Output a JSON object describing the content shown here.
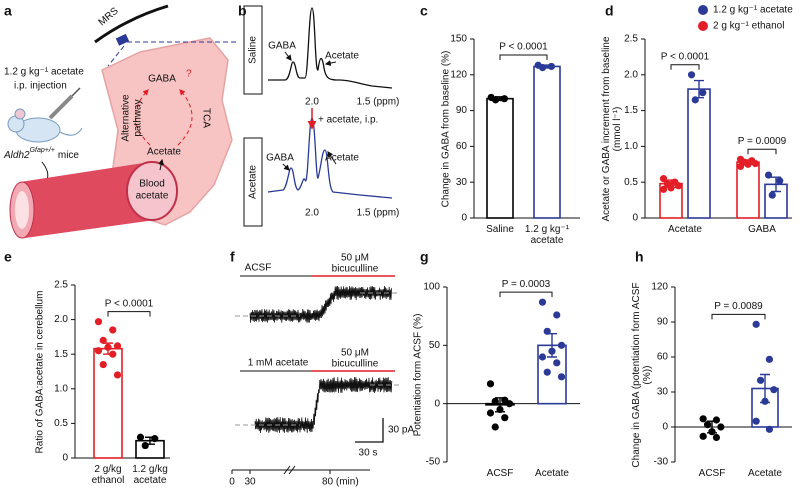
{
  "chart_data": [
    {
      "type": "bar",
      "panel": "c",
      "ylabel": "Change in GABA from baseline (%)",
      "categories": [
        "Saline",
        "1.2 g kg⁻¹ acetate"
      ],
      "values": [
        100,
        127
      ],
      "errors": [
        1.5,
        1.2
      ],
      "colors": [
        "#000000",
        "#2b3a97"
      ],
      "points": [
        [
          101,
          100,
          99
        ],
        [
          128,
          127,
          126
        ]
      ],
      "ylim": [
        0,
        150
      ],
      "yticks": [
        0,
        30,
        60,
        90,
        120,
        150
      ],
      "annotations": [
        {
          "text": "P < 0.0001",
          "between": [
            0,
            1
          ]
        }
      ]
    },
    {
      "type": "bar",
      "panel": "d",
      "ylabel": "Acetate or GABA increment from baseline (mmol l⁻¹)",
      "categories": [
        "Acetate",
        "GABA"
      ],
      "legend": "top-right",
      "series": [
        {
          "name": "1.2 g kg⁻¹ acetate",
          "color": "#2b3a97",
          "values": [
            1.8,
            0.47
          ],
          "errors": [
            0.12,
            0.1
          ],
          "points": [
            [
              2.0,
              1.75,
              1.65
            ],
            [
              0.6,
              0.52,
              0.32
            ]
          ]
        },
        {
          "name": "2 g kg⁻¹ ethanol",
          "color": "#e41e26",
          "values": [
            0.48,
            0.78
          ],
          "errors": [
            0.05,
            0.03
          ],
          "points": [
            [
              0.55,
              0.5,
              0.48,
              0.45,
              0.42,
              0.4,
              0.5
            ],
            [
              0.82,
              0.8,
              0.78,
              0.76,
              0.75,
              0.72
            ]
          ]
        }
      ],
      "ylim": [
        0,
        2.5
      ],
      "yticks": [
        0,
        0.5,
        {
          "value": 1,
          "label": "1.0"
        },
        1.5,
        {
          "value": 2,
          "label": "2.0"
        },
        2.5
      ],
      "annotations": [
        {
          "text": "P < 0.0001",
          "category": 0
        },
        {
          "text": "P = 0.0009",
          "category": 1
        }
      ]
    },
    {
      "type": "bar",
      "panel": "e",
      "ylabel": "Ratio of GABA:acetate in cerebellum",
      "categories": [
        "2 g/kg ethanol",
        "1.2 g/kg acetate"
      ],
      "values": [
        1.58,
        0.25
      ],
      "errors": [
        0.08,
        0.05
      ],
      "colors": [
        "#e41e26",
        "#000000"
      ],
      "points": [
        [
          1.97,
          1.85,
          1.7,
          1.62,
          1.6,
          1.55,
          1.5,
          1.35,
          1.2
        ],
        [
          0.3,
          0.28,
          0.18
        ]
      ],
      "ylim": [
        0,
        2.5
      ],
      "yticks": [
        0,
        0.5,
        {
          "value": 1,
          "label": "1.0"
        },
        1.5,
        {
          "value": 2,
          "label": "2.0"
        },
        2.5
      ],
      "annotations": [
        {
          "text": "P < 0.0001",
          "between": [
            0,
            1
          ]
        }
      ]
    },
    {
      "type": "bar",
      "panel": "g",
      "ylabel": "Potentiation form ACSF (%)",
      "categories": [
        "ACSF",
        "Acetate"
      ],
      "values": [
        -1,
        50
      ],
      "errors": [
        6,
        10
      ],
      "colors": [
        "#000000",
        "#2b3a97"
      ],
      "points": [
        [
          17,
          3,
          2,
          0,
          -5,
          -8,
          -12,
          -20
        ],
        [
          87,
          76,
          62,
          50,
          45,
          40,
          35,
          27,
          23
        ]
      ],
      "ylim": [
        -50,
        100
      ],
      "yticks": [
        -50,
        0,
        50,
        100
      ],
      "annotations": [
        {
          "text": "P = 0.0003",
          "between": [
            0,
            1
          ]
        }
      ]
    },
    {
      "type": "bar",
      "panel": "h",
      "ylabel": "Change in GABA (potentiation form ACSF (%))",
      "categories": [
        "ACSF",
        "Acetate"
      ],
      "values": [
        0,
        33
      ],
      "errors": [
        5,
        12
      ],
      "colors": [
        "#000000",
        "#2b3a97"
      ],
      "points": [
        [
          7,
          6,
          2,
          0,
          -4,
          -8,
          -9
        ],
        [
          88,
          58,
          40,
          32,
          22,
          5,
          -2
        ]
      ],
      "ylim": [
        -30,
        120
      ],
      "yticks": [
        -30,
        0,
        30,
        60,
        90,
        120
      ],
      "annotations": [
        {
          "text": "P = 0.0089",
          "between": [
            0,
            1
          ]
        }
      ]
    }
  ],
  "panel_a": {
    "panel": "a",
    "mrs": "MRS",
    "dose": "1.2 g kg⁻¹ acetate",
    "route": "i.p. injection",
    "mouse_gene": "Aldh2",
    "mouse_genotype": "Gfap+/+",
    "mouse_suffix": "mice",
    "gaba": "GABA",
    "question": "?",
    "pathway": [
      "Alternative",
      "pathway"
    ],
    "tca": "TCA",
    "acetate": "Acetate",
    "blood": [
      "Blood",
      "acetate"
    ]
  },
  "panel_b": {
    "panel": "b",
    "conditions": [
      "Saline",
      "Acetate"
    ],
    "peaks_top": [
      "GABA",
      "Acetate"
    ],
    "peaks_bottom": [
      "GABA",
      "Acetate"
    ],
    "axis_ticks": [
      "2.0",
      "1.5 (ppm)"
    ],
    "injection": "+ acetate, i.p."
  },
  "panel_f": {
    "panel": "f",
    "top": {
      "baseline": "ACSF",
      "drug": [
        "50 μM",
        "bicuculline"
      ]
    },
    "bottom": {
      "baseline": "1 mM acetate",
      "drug": [
        "50 μM",
        "bicuculline"
      ]
    },
    "scale": {
      "current": "30 pA",
      "time": "30 s"
    },
    "time_axis": [
      "0",
      "30",
      "80 (min)"
    ]
  }
}
